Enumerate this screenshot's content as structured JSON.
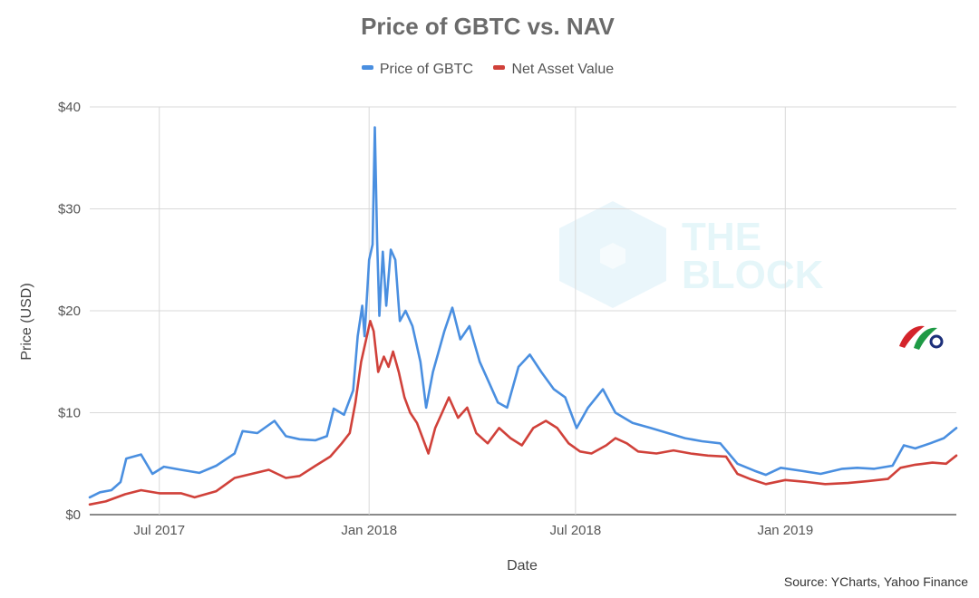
{
  "chart_data": {
    "type": "line",
    "title": "Price of GBTC vs. NAV",
    "xlabel": "Date",
    "ylabel": "Price (USD)",
    "x_ticks": [
      "Jul 2017",
      "Jan 2018",
      "Jul 2018",
      "Jan 2019"
    ],
    "y_ticks": [
      "$0",
      "$10",
      "$20",
      "$30",
      "$40"
    ],
    "ylim": [
      0,
      40
    ],
    "xlim": [
      "2017-05-01",
      "2019-05-31"
    ],
    "grid": true,
    "legend_position": "top",
    "source": "Source: YCharts, Yahoo Finance",
    "watermark_text": [
      "THE",
      "BLOCK"
    ],
    "series": [
      {
        "name": "Price of GBTC",
        "color": "#4a8fe0",
        "points": [
          [
            "2017-05-01",
            1.7
          ],
          [
            "2017-05-10",
            2.2
          ],
          [
            "2017-05-20",
            2.4
          ],
          [
            "2017-05-28",
            3.2
          ],
          [
            "2017-06-02",
            5.5
          ],
          [
            "2017-06-15",
            5.9
          ],
          [
            "2017-06-25",
            4.0
          ],
          [
            "2017-07-05",
            4.7
          ],
          [
            "2017-07-20",
            4.4
          ],
          [
            "2017-08-05",
            4.1
          ],
          [
            "2017-08-20",
            4.8
          ],
          [
            "2017-09-05",
            6.0
          ],
          [
            "2017-09-12",
            8.2
          ],
          [
            "2017-09-25",
            8.0
          ],
          [
            "2017-10-10",
            9.2
          ],
          [
            "2017-10-20",
            7.7
          ],
          [
            "2017-11-01",
            7.4
          ],
          [
            "2017-11-15",
            7.3
          ],
          [
            "2017-11-25",
            7.7
          ],
          [
            "2017-12-01",
            10.4
          ],
          [
            "2017-12-10",
            9.8
          ],
          [
            "2017-12-18",
            12.2
          ],
          [
            "2017-12-22",
            17.5
          ],
          [
            "2017-12-26",
            20.5
          ],
          [
            "2017-12-28",
            17.5
          ],
          [
            "2018-01-01",
            25.0
          ],
          [
            "2018-01-04",
            26.5
          ],
          [
            "2018-01-06",
            38.0
          ],
          [
            "2018-01-08",
            27.0
          ],
          [
            "2018-01-10",
            19.5
          ],
          [
            "2018-01-13",
            25.8
          ],
          [
            "2018-01-16",
            20.5
          ],
          [
            "2018-01-20",
            26.0
          ],
          [
            "2018-01-24",
            25.0
          ],
          [
            "2018-01-28",
            19.0
          ],
          [
            "2018-02-02",
            20.0
          ],
          [
            "2018-02-08",
            18.5
          ],
          [
            "2018-02-15",
            15.0
          ],
          [
            "2018-02-20",
            10.5
          ],
          [
            "2018-02-26",
            14.0
          ],
          [
            "2018-03-08",
            18.0
          ],
          [
            "2018-03-15",
            20.3
          ],
          [
            "2018-03-22",
            17.2
          ],
          [
            "2018-03-30",
            18.5
          ],
          [
            "2018-04-08",
            15.0
          ],
          [
            "2018-04-16",
            13.0
          ],
          [
            "2018-04-24",
            11.0
          ],
          [
            "2018-05-02",
            10.5
          ],
          [
            "2018-05-12",
            14.5
          ],
          [
            "2018-05-22",
            15.7
          ],
          [
            "2018-06-01",
            14.0
          ],
          [
            "2018-06-12",
            12.3
          ],
          [
            "2018-06-22",
            11.5
          ],
          [
            "2018-07-02",
            8.5
          ],
          [
            "2018-07-12",
            10.5
          ],
          [
            "2018-07-25",
            12.3
          ],
          [
            "2018-08-05",
            10.0
          ],
          [
            "2018-08-20",
            9.0
          ],
          [
            "2018-09-05",
            8.5
          ],
          [
            "2018-09-20",
            8.0
          ],
          [
            "2018-10-05",
            7.5
          ],
          [
            "2018-10-20",
            7.2
          ],
          [
            "2018-11-05",
            7.0
          ],
          [
            "2018-11-20",
            5.0
          ],
          [
            "2018-12-05",
            4.3
          ],
          [
            "2018-12-15",
            3.9
          ],
          [
            "2018-12-28",
            4.6
          ],
          [
            "2019-01-15",
            4.3
          ],
          [
            "2019-02-01",
            4.0
          ],
          [
            "2019-02-20",
            4.5
          ],
          [
            "2019-03-05",
            4.6
          ],
          [
            "2019-03-20",
            4.5
          ],
          [
            "2019-04-05",
            4.8
          ],
          [
            "2019-04-15",
            6.8
          ],
          [
            "2019-04-25",
            6.5
          ],
          [
            "2019-05-08",
            7.0
          ],
          [
            "2019-05-20",
            7.5
          ],
          [
            "2019-05-31",
            8.5
          ]
        ]
      },
      {
        "name": "Net Asset Value",
        "color": "#d0413a",
        "points": [
          [
            "2017-05-01",
            1.0
          ],
          [
            "2017-05-15",
            1.3
          ],
          [
            "2017-06-01",
            2.0
          ],
          [
            "2017-06-15",
            2.4
          ],
          [
            "2017-07-01",
            2.1
          ],
          [
            "2017-07-20",
            2.1
          ],
          [
            "2017-08-01",
            1.7
          ],
          [
            "2017-08-20",
            2.3
          ],
          [
            "2017-09-05",
            3.6
          ],
          [
            "2017-09-20",
            4.0
          ],
          [
            "2017-10-05",
            4.4
          ],
          [
            "2017-10-20",
            3.6
          ],
          [
            "2017-11-01",
            3.8
          ],
          [
            "2017-11-15",
            4.8
          ],
          [
            "2017-11-28",
            5.7
          ],
          [
            "2017-12-08",
            7.0
          ],
          [
            "2017-12-15",
            8.0
          ],
          [
            "2017-12-20",
            11.0
          ],
          [
            "2017-12-25",
            15.0
          ],
          [
            "2017-12-30",
            17.5
          ],
          [
            "2018-01-02",
            19.0
          ],
          [
            "2018-01-05",
            18.0
          ],
          [
            "2018-01-09",
            14.0
          ],
          [
            "2018-01-14",
            15.5
          ],
          [
            "2018-01-18",
            14.5
          ],
          [
            "2018-01-22",
            16.0
          ],
          [
            "2018-01-27",
            14.0
          ],
          [
            "2018-02-01",
            11.5
          ],
          [
            "2018-02-06",
            10.0
          ],
          [
            "2018-02-12",
            9.0
          ],
          [
            "2018-02-17",
            7.5
          ],
          [
            "2018-02-22",
            6.0
          ],
          [
            "2018-02-28",
            8.5
          ],
          [
            "2018-03-06",
            10.0
          ],
          [
            "2018-03-12",
            11.5
          ],
          [
            "2018-03-20",
            9.5
          ],
          [
            "2018-03-28",
            10.5
          ],
          [
            "2018-04-05",
            8.0
          ],
          [
            "2018-04-15",
            7.0
          ],
          [
            "2018-04-25",
            8.5
          ],
          [
            "2018-05-05",
            7.5
          ],
          [
            "2018-05-15",
            6.8
          ],
          [
            "2018-05-25",
            8.5
          ],
          [
            "2018-06-05",
            9.2
          ],
          [
            "2018-06-15",
            8.5
          ],
          [
            "2018-06-25",
            7.0
          ],
          [
            "2018-07-05",
            6.2
          ],
          [
            "2018-07-15",
            6.0
          ],
          [
            "2018-07-28",
            6.8
          ],
          [
            "2018-08-05",
            7.5
          ],
          [
            "2018-08-15",
            7.0
          ],
          [
            "2018-08-25",
            6.2
          ],
          [
            "2018-09-10",
            6.0
          ],
          [
            "2018-09-25",
            6.3
          ],
          [
            "2018-10-10",
            6.0
          ],
          [
            "2018-10-25",
            5.8
          ],
          [
            "2018-11-10",
            5.7
          ],
          [
            "2018-11-20",
            4.0
          ],
          [
            "2018-12-01",
            3.5
          ],
          [
            "2018-12-15",
            3.0
          ],
          [
            "2019-01-01",
            3.4
          ],
          [
            "2019-01-20",
            3.2
          ],
          [
            "2019-02-05",
            3.0
          ],
          [
            "2019-02-25",
            3.1
          ],
          [
            "2019-03-15",
            3.3
          ],
          [
            "2019-04-01",
            3.5
          ],
          [
            "2019-04-12",
            4.6
          ],
          [
            "2019-04-25",
            4.9
          ],
          [
            "2019-05-10",
            5.1
          ],
          [
            "2019-05-22",
            5.0
          ],
          [
            "2019-05-31",
            5.8
          ]
        ]
      }
    ]
  }
}
